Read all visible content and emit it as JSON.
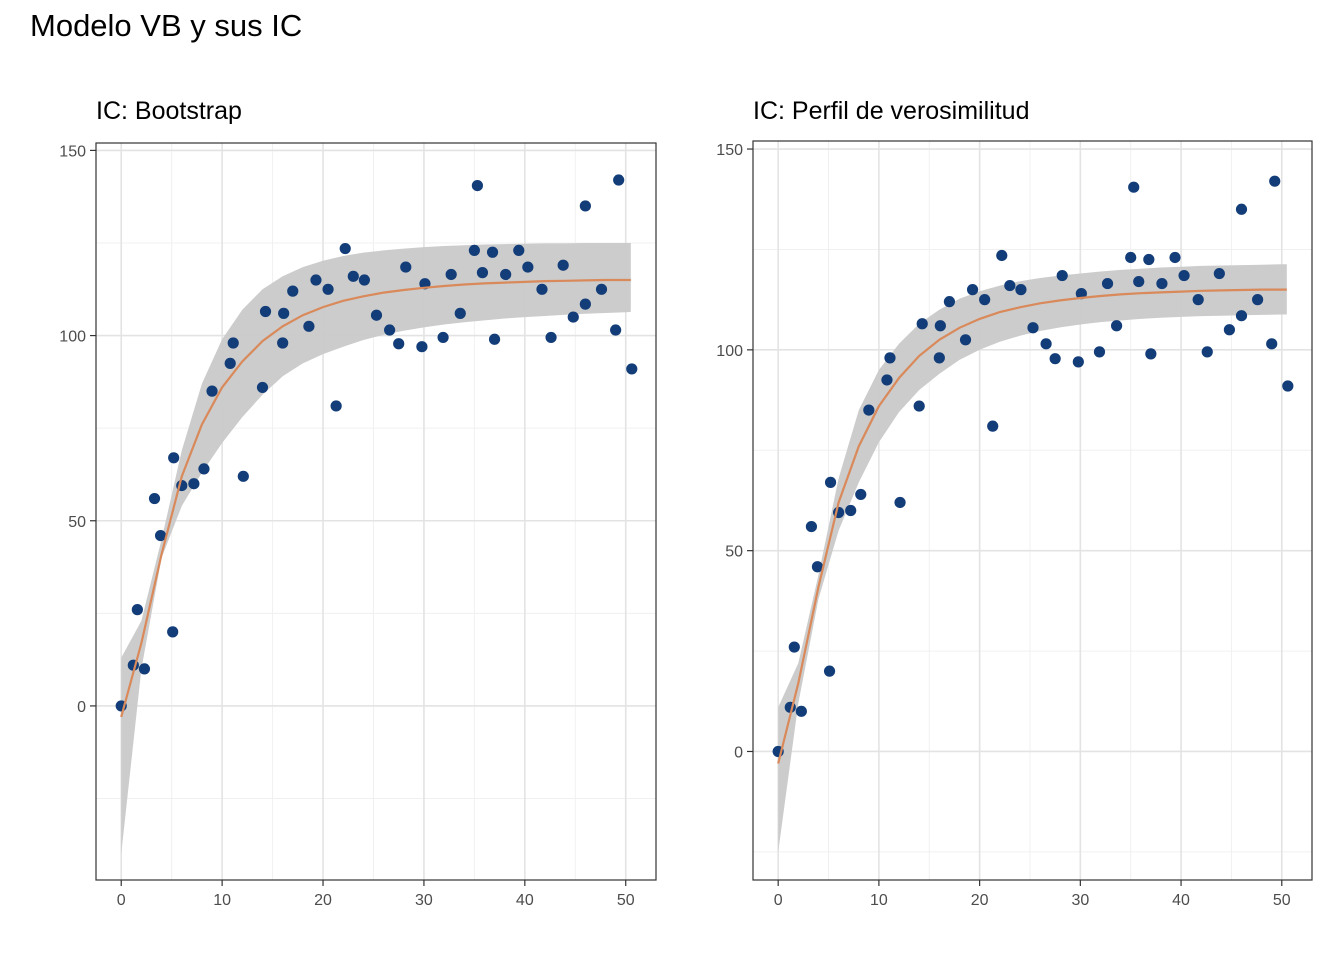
{
  "title": "Modelo VB y sus IC",
  "chart_data": [
    {
      "type": "scatter",
      "title": "IC: Bootstrap",
      "xlabel": "",
      "ylabel": "",
      "xlim": [
        -2.5,
        53
      ],
      "ylim": [
        -47,
        152
      ],
      "x_ticks": [
        0,
        10,
        20,
        30,
        40,
        50
      ],
      "y_ticks": [
        0,
        50,
        100,
        150
      ],
      "grid": true,
      "points": [
        [
          0,
          0
        ],
        [
          1.2,
          11
        ],
        [
          1.6,
          26
        ],
        [
          2.3,
          10
        ],
        [
          3.3,
          56
        ],
        [
          3.9,
          46
        ],
        [
          5.1,
          20
        ],
        [
          5.2,
          67
        ],
        [
          6.0,
          59.5
        ],
        [
          7.2,
          60
        ],
        [
          8.2,
          64
        ],
        [
          9.0,
          85
        ],
        [
          10.8,
          92.5
        ],
        [
          11.1,
          98
        ],
        [
          12.1,
          62
        ],
        [
          14.0,
          86
        ],
        [
          14.3,
          106.5
        ],
        [
          16.0,
          98
        ],
        [
          16.1,
          106
        ],
        [
          17.0,
          112
        ],
        [
          18.6,
          102.5
        ],
        [
          19.3,
          115
        ],
        [
          20.5,
          112.5
        ],
        [
          21.3,
          81
        ],
        [
          22.2,
          123.5
        ],
        [
          23.0,
          116
        ],
        [
          24.1,
          115
        ],
        [
          25.3,
          105.5
        ],
        [
          26.6,
          101.5
        ],
        [
          27.5,
          97.8
        ],
        [
          28.2,
          118.5
        ],
        [
          29.8,
          97
        ],
        [
          30.1,
          114
        ],
        [
          31.9,
          99.5
        ],
        [
          32.7,
          116.5
        ],
        [
          33.6,
          106
        ],
        [
          35.0,
          123
        ],
        [
          35.3,
          140.5
        ],
        [
          35.8,
          117
        ],
        [
          36.8,
          122.5
        ],
        [
          37.0,
          99
        ],
        [
          38.1,
          116.5
        ],
        [
          39.4,
          123
        ],
        [
          40.3,
          118.5
        ],
        [
          41.7,
          112.5
        ],
        [
          42.6,
          99.5
        ],
        [
          43.8,
          119
        ],
        [
          44.8,
          105
        ],
        [
          46.0,
          135
        ],
        [
          46.0,
          108.5
        ],
        [
          47.6,
          112.5
        ],
        [
          49.0,
          101.5
        ],
        [
          49.3,
          142
        ],
        [
          50.6,
          91
        ]
      ],
      "fit_curve": [
        [
          0,
          -3
        ],
        [
          2,
          17
        ],
        [
          4,
          41
        ],
        [
          6,
          62
        ],
        [
          8,
          76
        ],
        [
          10,
          86
        ],
        [
          12,
          93
        ],
        [
          14,
          98.5
        ],
        [
          16,
          102.5
        ],
        [
          18,
          105.5
        ],
        [
          20,
          107.7
        ],
        [
          22,
          109.4
        ],
        [
          24,
          110.6
        ],
        [
          26,
          111.6
        ],
        [
          28,
          112.3
        ],
        [
          30,
          112.9
        ],
        [
          32,
          113.4
        ],
        [
          34,
          113.8
        ],
        [
          36,
          114.1
        ],
        [
          38,
          114.3
        ],
        [
          40,
          114.5
        ],
        [
          42,
          114.7
        ],
        [
          44,
          114.8
        ],
        [
          46,
          114.9
        ],
        [
          48,
          115
        ],
        [
          50,
          115
        ],
        [
          50.5,
          115
        ]
      ],
      "ci_lower": [
        [
          0,
          -40
        ],
        [
          2,
          10
        ],
        [
          4,
          40
        ],
        [
          6,
          54
        ],
        [
          8,
          63
        ],
        [
          10,
          71
        ],
        [
          12,
          78
        ],
        [
          14,
          84
        ],
        [
          16,
          89
        ],
        [
          18,
          92.5
        ],
        [
          20,
          95
        ],
        [
          22,
          97
        ],
        [
          24,
          98.8
        ],
        [
          26,
          100.2
        ],
        [
          28,
          101.3
        ],
        [
          30,
          102.2
        ],
        [
          32,
          103
        ],
        [
          34,
          103.6
        ],
        [
          36,
          104.1
        ],
        [
          38,
          104.6
        ],
        [
          40,
          105
        ],
        [
          42,
          105.3
        ],
        [
          44,
          105.6
        ],
        [
          46,
          105.9
        ],
        [
          48,
          106.1
        ],
        [
          50,
          106.3
        ],
        [
          50.5,
          106.4
        ]
      ],
      "ci_upper": [
        [
          0,
          13
        ],
        [
          2,
          23
        ],
        [
          4,
          45
        ],
        [
          6,
          69
        ],
        [
          8,
          87
        ],
        [
          10,
          99
        ],
        [
          12,
          107
        ],
        [
          14,
          112.5
        ],
        [
          16,
          116
        ],
        [
          18,
          118.5
        ],
        [
          20,
          120.2
        ],
        [
          22,
          121.5
        ],
        [
          24,
          122.4
        ],
        [
          26,
          123
        ],
        [
          28,
          123.5
        ],
        [
          30,
          123.9
        ],
        [
          32,
          124.2
        ],
        [
          34,
          124.4
        ],
        [
          36,
          124.6
        ],
        [
          38,
          124.7
        ],
        [
          40,
          124.8
        ],
        [
          42,
          124.9
        ],
        [
          44,
          124.9
        ],
        [
          46,
          125
        ],
        [
          48,
          125
        ],
        [
          50,
          125
        ],
        [
          50.5,
          125
        ]
      ],
      "colors": {
        "points": "#133d78",
        "fit": "#d9895a",
        "ribbon": "#c9c9c9"
      }
    },
    {
      "type": "scatter",
      "title": "IC: Perfil de verosimilitud",
      "xlabel": "",
      "ylabel": "",
      "xlim": [
        -2.5,
        53
      ],
      "ylim": [
        -32,
        152
      ],
      "x_ticks": [
        0,
        10,
        20,
        30,
        40,
        50
      ],
      "y_ticks": [
        0,
        50,
        100,
        150
      ],
      "grid": true,
      "points": [
        [
          0,
          0
        ],
        [
          1.2,
          11
        ],
        [
          1.6,
          26
        ],
        [
          2.3,
          10
        ],
        [
          3.3,
          56
        ],
        [
          3.9,
          46
        ],
        [
          5.1,
          20
        ],
        [
          5.2,
          67
        ],
        [
          6.0,
          59.5
        ],
        [
          7.2,
          60
        ],
        [
          8.2,
          64
        ],
        [
          9.0,
          85
        ],
        [
          10.8,
          92.5
        ],
        [
          11.1,
          98
        ],
        [
          12.1,
          62
        ],
        [
          14.0,
          86
        ],
        [
          14.3,
          106.5
        ],
        [
          16.0,
          98
        ],
        [
          16.1,
          106
        ],
        [
          17.0,
          112
        ],
        [
          18.6,
          102.5
        ],
        [
          19.3,
          115
        ],
        [
          20.5,
          112.5
        ],
        [
          21.3,
          81
        ],
        [
          22.2,
          123.5
        ],
        [
          23.0,
          116
        ],
        [
          24.1,
          115
        ],
        [
          25.3,
          105.5
        ],
        [
          26.6,
          101.5
        ],
        [
          27.5,
          97.8
        ],
        [
          28.2,
          118.5
        ],
        [
          29.8,
          97
        ],
        [
          30.1,
          114
        ],
        [
          31.9,
          99.5
        ],
        [
          32.7,
          116.5
        ],
        [
          33.6,
          106
        ],
        [
          35.0,
          123
        ],
        [
          35.3,
          140.5
        ],
        [
          35.8,
          117
        ],
        [
          36.8,
          122.5
        ],
        [
          37.0,
          99
        ],
        [
          38.1,
          116.5
        ],
        [
          39.4,
          123
        ],
        [
          40.3,
          118.5
        ],
        [
          41.7,
          112.5
        ],
        [
          42.6,
          99.5
        ],
        [
          43.8,
          119
        ],
        [
          44.8,
          105
        ],
        [
          46.0,
          135
        ],
        [
          46.0,
          108.5
        ],
        [
          47.6,
          112.5
        ],
        [
          49.0,
          101.5
        ],
        [
          49.3,
          142
        ],
        [
          50.6,
          91
        ]
      ],
      "fit_curve": [
        [
          0,
          -3
        ],
        [
          2,
          17
        ],
        [
          4,
          41
        ],
        [
          6,
          62
        ],
        [
          8,
          76
        ],
        [
          10,
          86
        ],
        [
          12,
          93
        ],
        [
          14,
          98.5
        ],
        [
          16,
          102.5
        ],
        [
          18,
          105.5
        ],
        [
          20,
          107.7
        ],
        [
          22,
          109.4
        ],
        [
          24,
          110.6
        ],
        [
          26,
          111.6
        ],
        [
          28,
          112.3
        ],
        [
          30,
          112.9
        ],
        [
          32,
          113.4
        ],
        [
          34,
          113.8
        ],
        [
          36,
          114.1
        ],
        [
          38,
          114.3
        ],
        [
          40,
          114.5
        ],
        [
          42,
          114.7
        ],
        [
          44,
          114.8
        ],
        [
          46,
          114.9
        ],
        [
          48,
          115
        ],
        [
          50,
          115
        ],
        [
          50.5,
          115
        ]
      ],
      "ci_lower": [
        [
          0,
          -25
        ],
        [
          2,
          12
        ],
        [
          4,
          38
        ],
        [
          6,
          55
        ],
        [
          8,
          67
        ],
        [
          10,
          77
        ],
        [
          12,
          84.5
        ],
        [
          14,
          90
        ],
        [
          16,
          94
        ],
        [
          18,
          97.5
        ],
        [
          20,
          100
        ],
        [
          22,
          102
        ],
        [
          24,
          103.5
        ],
        [
          26,
          104.7
        ],
        [
          28,
          105.6
        ],
        [
          30,
          106.3
        ],
        [
          32,
          106.9
        ],
        [
          34,
          107.3
        ],
        [
          36,
          107.7
        ],
        [
          38,
          108
        ],
        [
          40,
          108.2
        ],
        [
          42,
          108.4
        ],
        [
          44,
          108.5
        ],
        [
          46,
          108.6
        ],
        [
          48,
          108.7
        ],
        [
          50,
          108.8
        ],
        [
          50.5,
          108.8
        ]
      ],
      "ci_upper": [
        [
          0,
          11
        ],
        [
          2,
          22
        ],
        [
          4,
          44
        ],
        [
          6,
          68
        ],
        [
          8,
          85
        ],
        [
          10,
          95
        ],
        [
          12,
          101.5
        ],
        [
          14,
          106.5
        ],
        [
          16,
          110
        ],
        [
          18,
          112.7
        ],
        [
          20,
          114.6
        ],
        [
          22,
          116
        ],
        [
          24,
          117.1
        ],
        [
          26,
          117.9
        ],
        [
          28,
          118.5
        ],
        [
          30,
          119
        ],
        [
          32,
          119.5
        ],
        [
          34,
          119.9
        ],
        [
          36,
          120.2
        ],
        [
          38,
          120.5
        ],
        [
          40,
          120.7
        ],
        [
          42,
          120.9
        ],
        [
          44,
          121
        ],
        [
          46,
          121.1
        ],
        [
          48,
          121.2
        ],
        [
          50,
          121.3
        ],
        [
          50.5,
          121.3
        ]
      ],
      "colors": {
        "points": "#133d78",
        "fit": "#d9895a",
        "ribbon": "#c9c9c9"
      }
    }
  ]
}
